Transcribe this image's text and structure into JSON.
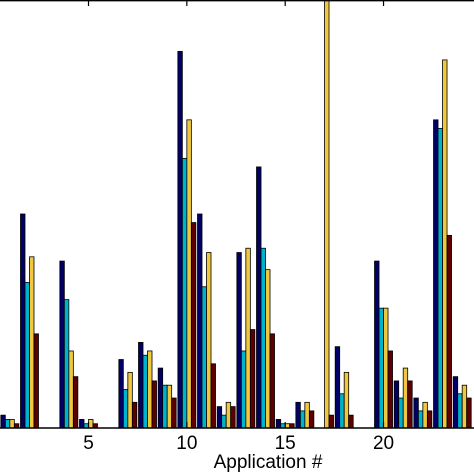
{
  "chart_data": {
    "type": "bar",
    "xlabel": "Application #",
    "xlim": [
      0.5,
      24.6
    ],
    "ylim": [
      0,
      100
    ],
    "xticks": [
      5,
      10,
      15,
      20
    ],
    "xtick_labels": [
      "5",
      "10",
      "15",
      "20"
    ],
    "grid": false,
    "legend": "none",
    "categories": [
      1,
      2,
      3,
      4,
      5,
      6,
      7,
      8,
      9,
      10,
      11,
      12,
      13,
      14,
      15,
      16,
      17,
      18,
      19,
      20,
      21,
      22,
      23,
      24
    ],
    "series": [
      {
        "color": "#000066",
        "values": [
          3,
          50,
          0,
          39,
          2,
          0,
          16,
          20,
          14,
          88,
          50,
          5,
          41,
          61,
          2,
          6,
          0,
          19,
          0,
          39,
          11,
          7,
          72,
          12
        ]
      },
      {
        "color": "#00b3cc",
        "values": [
          2,
          34,
          0,
          30,
          1,
          0,
          9,
          17,
          10,
          63,
          33,
          3,
          18,
          42,
          1,
          4,
          0,
          8,
          0,
          28,
          7,
          4,
          70,
          8
        ]
      },
      {
        "color": "#f0c840",
        "values": [
          2,
          40,
          0,
          18,
          2,
          0,
          13,
          18,
          10,
          72,
          41,
          6,
          42,
          37,
          1,
          6,
          102,
          13,
          0,
          28,
          14,
          6,
          86,
          10
        ]
      },
      {
        "color": "#5c0000",
        "values": [
          1,
          22,
          0,
          12,
          1,
          0,
          6,
          11,
          7,
          48,
          15,
          5,
          23,
          22,
          1,
          4,
          3,
          3,
          0,
          18,
          11,
          4,
          45,
          7
        ]
      }
    ]
  }
}
